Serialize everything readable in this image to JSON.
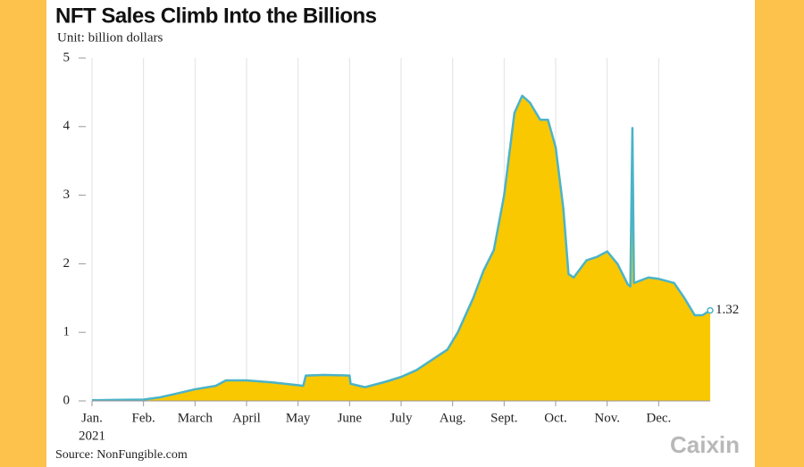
{
  "chart_data": {
    "type": "area",
    "title": "NFT Sales Climb Into the Billions",
    "subtitle": "Unit: billion dollars",
    "source": "Source: NonFungible.com",
    "logo": "Caixin",
    "year": "2021",
    "x": [
      0,
      1,
      1.3,
      1.6,
      2,
      2.4,
      2.6,
      3,
      3.5,
      4,
      4.1,
      4.15,
      4.5,
      5,
      5.02,
      5.3,
      5.7,
      6,
      6.3,
      6.6,
      6.9,
      7.1,
      7.4,
      7.6,
      7.8,
      8.0,
      8.2,
      8.35,
      8.5,
      8.7,
      8.85,
      9.0,
      9.15,
      9.25,
      9.35,
      9.6,
      9.8,
      10,
      10.2,
      10.4,
      10.45,
      10.49,
      10.52,
      10.8,
      11,
      11.3,
      11.5,
      11.7,
      11.85,
      12
    ],
    "values": [
      0.01,
      0.02,
      0.05,
      0.1,
      0.17,
      0.22,
      0.3,
      0.3,
      0.27,
      0.23,
      0.22,
      0.37,
      0.38,
      0.37,
      0.25,
      0.2,
      0.28,
      0.35,
      0.45,
      0.6,
      0.75,
      1.0,
      1.5,
      1.9,
      2.2,
      3.0,
      4.2,
      4.45,
      4.35,
      4.1,
      4.1,
      3.7,
      2.8,
      1.85,
      1.8,
      2.05,
      2.1,
      2.18,
      2.0,
      1.7,
      1.67,
      3.98,
      1.72,
      1.8,
      1.78,
      1.72,
      1.5,
      1.25,
      1.25,
      1.32
    ],
    "fill_color": "#f9c800",
    "line_color": "#4bb3c8",
    "xlim": [
      0,
      12
    ],
    "xticks": [
      {
        "value": 0,
        "label": "Jan."
      },
      {
        "value": 1,
        "label": "Feb."
      },
      {
        "value": 2,
        "label": "March"
      },
      {
        "value": 3,
        "label": "April"
      },
      {
        "value": 4,
        "label": "May"
      },
      {
        "value": 5,
        "label": "June"
      },
      {
        "value": 6,
        "label": "July"
      },
      {
        "value": 7,
        "label": "Aug."
      },
      {
        "value": 8,
        "label": "Sept."
      },
      {
        "value": 9,
        "label": "Oct."
      },
      {
        "value": 10,
        "label": "Nov."
      },
      {
        "value": 11,
        "label": "Dec."
      }
    ],
    "ylim": [
      0,
      5
    ],
    "yticks": [
      0,
      1,
      2,
      3,
      4,
      5
    ],
    "grid": true
  }
}
